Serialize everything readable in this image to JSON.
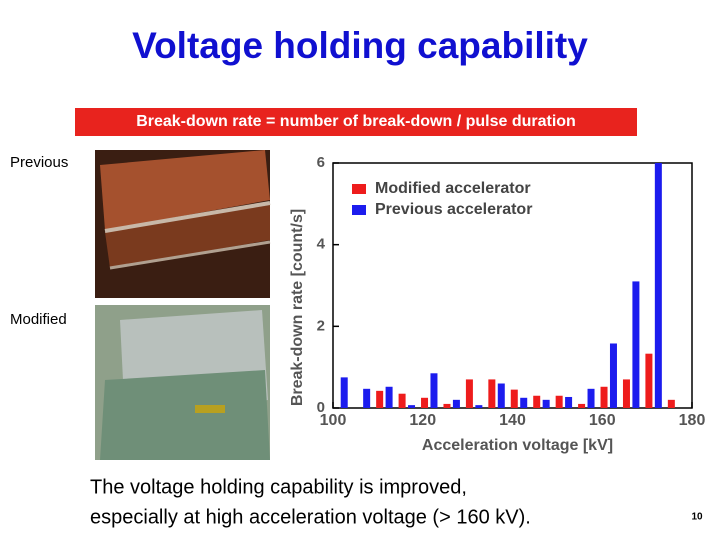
{
  "title": "Voltage holding capability",
  "definition": "Break-down rate = number of break-down / pulse duration",
  "photo_labels": [
    "Previous",
    "Modified"
  ],
  "caption": [
    "The voltage holding capability is improved,",
    "especially at high acceleration voltage (> 160 kV)."
  ],
  "page_number": "10",
  "chart_data": {
    "type": "bar",
    "x_label": "Acceleration voltage [kV]",
    "y_label": "Break-down rate [count/s]",
    "x": [
      102.5,
      107.5,
      112.5,
      117.5,
      122.5,
      127.5,
      132.5,
      137.5,
      142.5,
      147.5,
      152.5,
      157.5,
      162.5,
      167.5,
      172.5
    ],
    "series": [
      {
        "name": "Modified accelerator",
        "color": "#ee1c1c",
        "values": [
          0,
          0.42,
          0.35,
          0.25,
          0.1,
          0.7,
          0.7,
          0.45,
          0.3,
          0.3,
          0.1,
          0.52,
          0.7,
          1.33,
          0.2
        ]
      },
      {
        "name": "Previous accelerator",
        "color": "#1c1cee",
        "values": [
          0.75,
          0.47,
          0.52,
          0.07,
          0.85,
          0.2,
          0.07,
          0.6,
          0.25,
          0.2,
          0.27,
          0.47,
          1.58,
          3.1,
          6.0
        ]
      }
    ],
    "xlim": [
      100,
      180
    ],
    "xticks": [
      100,
      120,
      140,
      160,
      180
    ],
    "ylim": [
      0,
      6
    ],
    "yticks": [
      0,
      2,
      4,
      6
    ],
    "legend": "upper-left"
  }
}
